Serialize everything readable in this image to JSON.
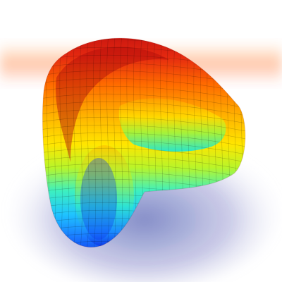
{
  "image": {
    "subject": "rainbow-torus-surface",
    "background_color": "#ffffff",
    "palette": [
      "#d71410",
      "#ff6a00",
      "#ffd200",
      "#c9f51e",
      "#2ff0c7",
      "#1fb6ff",
      "#1040ff"
    ]
  }
}
